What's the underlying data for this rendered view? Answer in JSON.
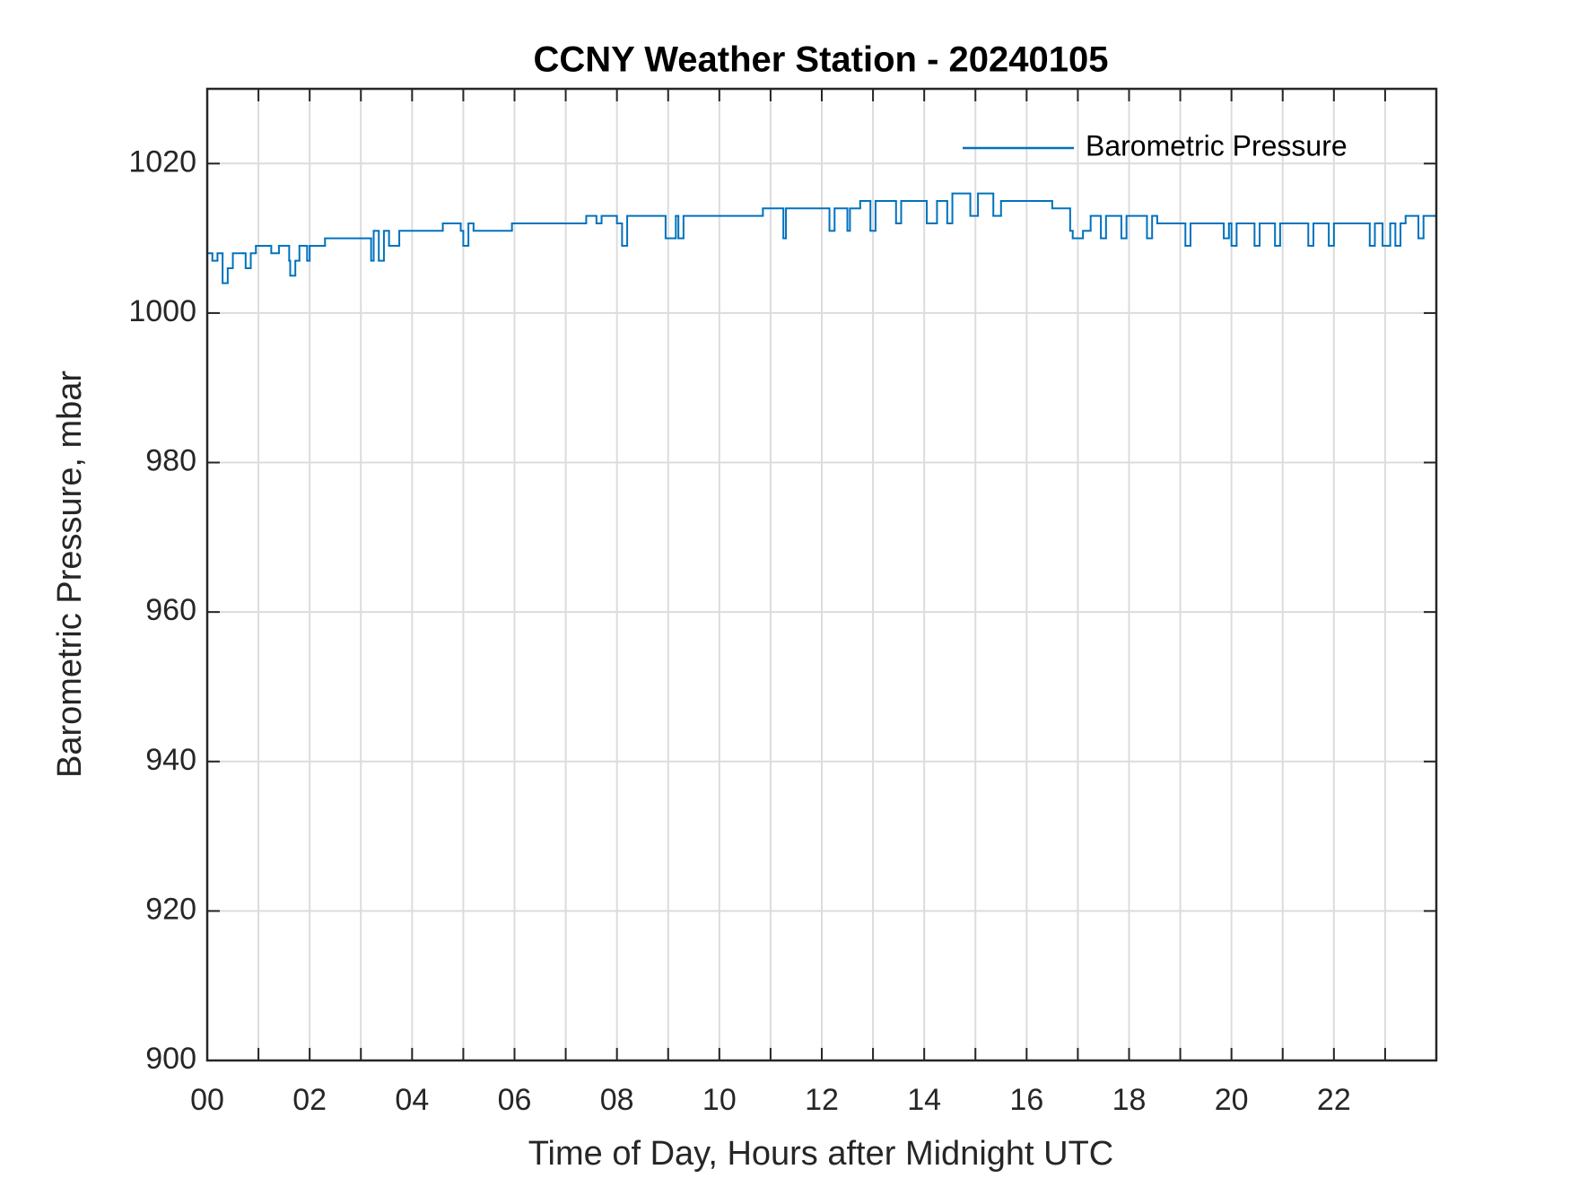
{
  "chart_data": {
    "type": "line",
    "step": "post",
    "title": "CCNY Weather Station - 20240105",
    "x_label": "Time of Day, Hours after Midnight UTC",
    "y_label": "Barometric Pressure, mbar",
    "xlim": [
      0,
      24
    ],
    "ylim": [
      900,
      1030
    ],
    "xticks": [
      {
        "value": 0,
        "label": "00"
      },
      {
        "value": 2,
        "label": "02"
      },
      {
        "value": 4,
        "label": "04"
      },
      {
        "value": 6,
        "label": "06"
      },
      {
        "value": 8,
        "label": "08"
      },
      10,
      12,
      14,
      16,
      18,
      20,
      22
    ],
    "x_minor_ticks": [
      1,
      3,
      5,
      7,
      9,
      11,
      13,
      15,
      17,
      19,
      21,
      23
    ],
    "yticks": [
      900,
      920,
      940,
      960,
      980,
      1000,
      1020
    ],
    "grid": true,
    "legend": "upper right",
    "x": [
      0,
      0.1,
      0.2,
      0.3,
      0.4,
      0.5,
      0.7,
      0.75,
      0.85,
      0.95,
      1.2,
      1.25,
      1.4,
      1.6,
      1.62,
      1.72,
      1.8,
      1.95,
      2.0,
      2.3,
      3.2,
      3.25,
      3.35,
      3.45,
      3.55,
      3.75,
      4.6,
      4.95,
      5.0,
      5.1,
      5.2,
      5.95,
      7.4,
      7.6,
      7.7,
      8.0,
      8.1,
      8.2,
      8.95,
      9.15,
      9.2,
      9.3,
      10.85,
      11.25,
      11.3,
      12.15,
      12.25,
      12.5,
      12.55,
      12.75,
      12.95,
      13.05,
      13.45,
      13.55,
      14.05,
      14.25,
      14.45,
      14.55,
      14.9,
      15.05,
      15.35,
      15.5,
      16.5,
      16.85,
      16.9,
      17.1,
      17.25,
      17.45,
      17.55,
      17.85,
      17.95,
      18.35,
      18.45,
      18.55,
      19.1,
      19.2,
      19.85,
      19.95,
      20.0,
      20.1,
      20.45,
      20.55,
      20.85,
      20.95,
      21.5,
      21.6,
      21.9,
      22.0,
      22.7,
      22.8,
      22.95,
      23.1,
      23.2,
      23.3,
      23.4,
      23.65,
      23.75,
      23.98
    ],
    "series": [
      {
        "name": "Barometric Pressure",
        "color": "#0072bd",
        "values": [
          1008,
          1007,
          1008,
          1004,
          1006,
          1008,
          1008,
          1006,
          1008,
          1009,
          1009,
          1008,
          1009,
          1007,
          1005,
          1007,
          1009,
          1007,
          1009,
          1010,
          1007,
          1011,
          1007,
          1011,
          1009,
          1011,
          1012,
          1011,
          1009,
          1012,
          1011,
          1012,
          1013,
          1012,
          1013,
          1012,
          1009,
          1013,
          1010,
          1013,
          1010,
          1013,
          1014,
          1010,
          1014,
          1011,
          1014,
          1011,
          1014,
          1015,
          1011,
          1015,
          1012,
          1015,
          1012,
          1015,
          1012,
          1016,
          1013,
          1016,
          1013,
          1015,
          1014,
          1011,
          1010,
          1011,
          1013,
          1010,
          1013,
          1010,
          1013,
          1010,
          1013,
          1012,
          1009,
          1012,
          1010,
          1012,
          1009,
          1012,
          1009,
          1012,
          1009,
          1012,
          1009,
          1012,
          1009,
          1012,
          1009,
          1012,
          1009,
          1012,
          1009,
          1012,
          1013,
          1010,
          1013,
          1013
        ]
      }
    ]
  }
}
